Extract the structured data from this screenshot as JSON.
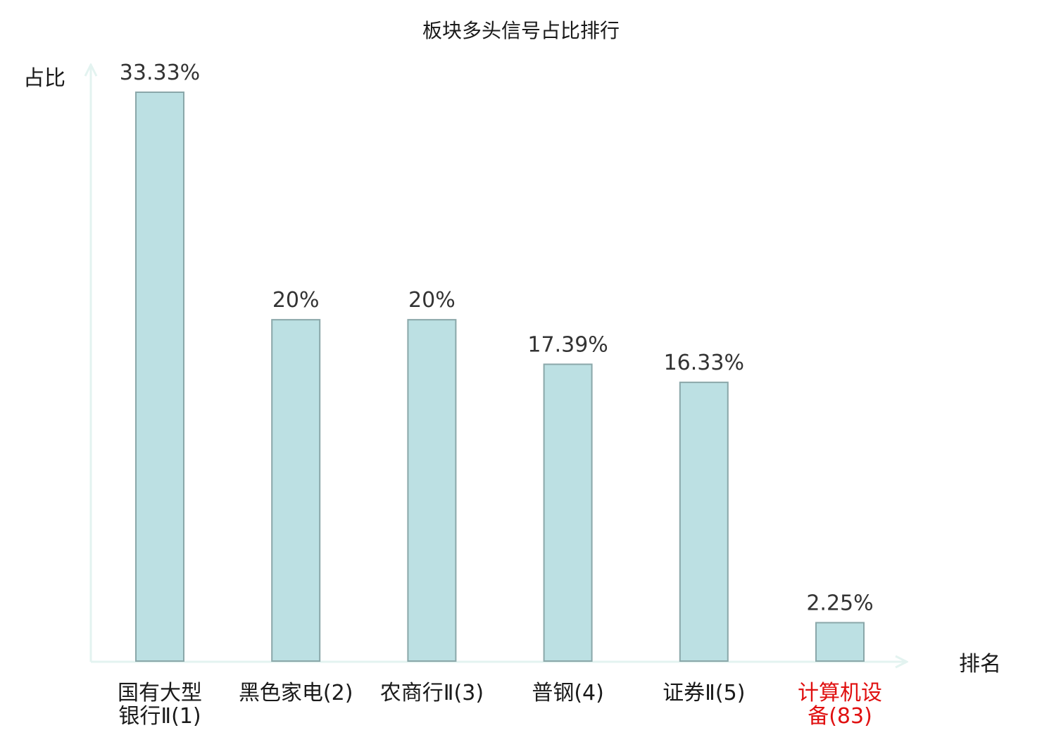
{
  "chart_data": {
    "type": "bar",
    "title": "板块多头信号占比排行",
    "ylabel": "占比",
    "xlabel": "排名",
    "categories": [
      [
        "国有大型",
        "银行Ⅱ(1)"
      ],
      [
        "黑色家电(2)"
      ],
      [
        "农商行Ⅱ(3)"
      ],
      [
        "普钢(4)"
      ],
      [
        "证券Ⅱ(5)"
      ],
      [
        "计算机设",
        "备(83)"
      ]
    ],
    "values": [
      33.33,
      20,
      20,
      17.39,
      16.33,
      2.25
    ],
    "value_labels": [
      "33.33%",
      "20%",
      "20%",
      "17.39%",
      "16.33%",
      "2.25%"
    ],
    "highlight_index": 5,
    "ylim": [
      0,
      33.33
    ],
    "grid": false,
    "colors": {
      "bar_fill": "#bce0e3",
      "bar_stroke": "#8aa7a9",
      "axis": "#e3f3f0",
      "label_text": "#1a1a1a",
      "value_text": "#333333",
      "highlight_text": "#e01010"
    }
  }
}
